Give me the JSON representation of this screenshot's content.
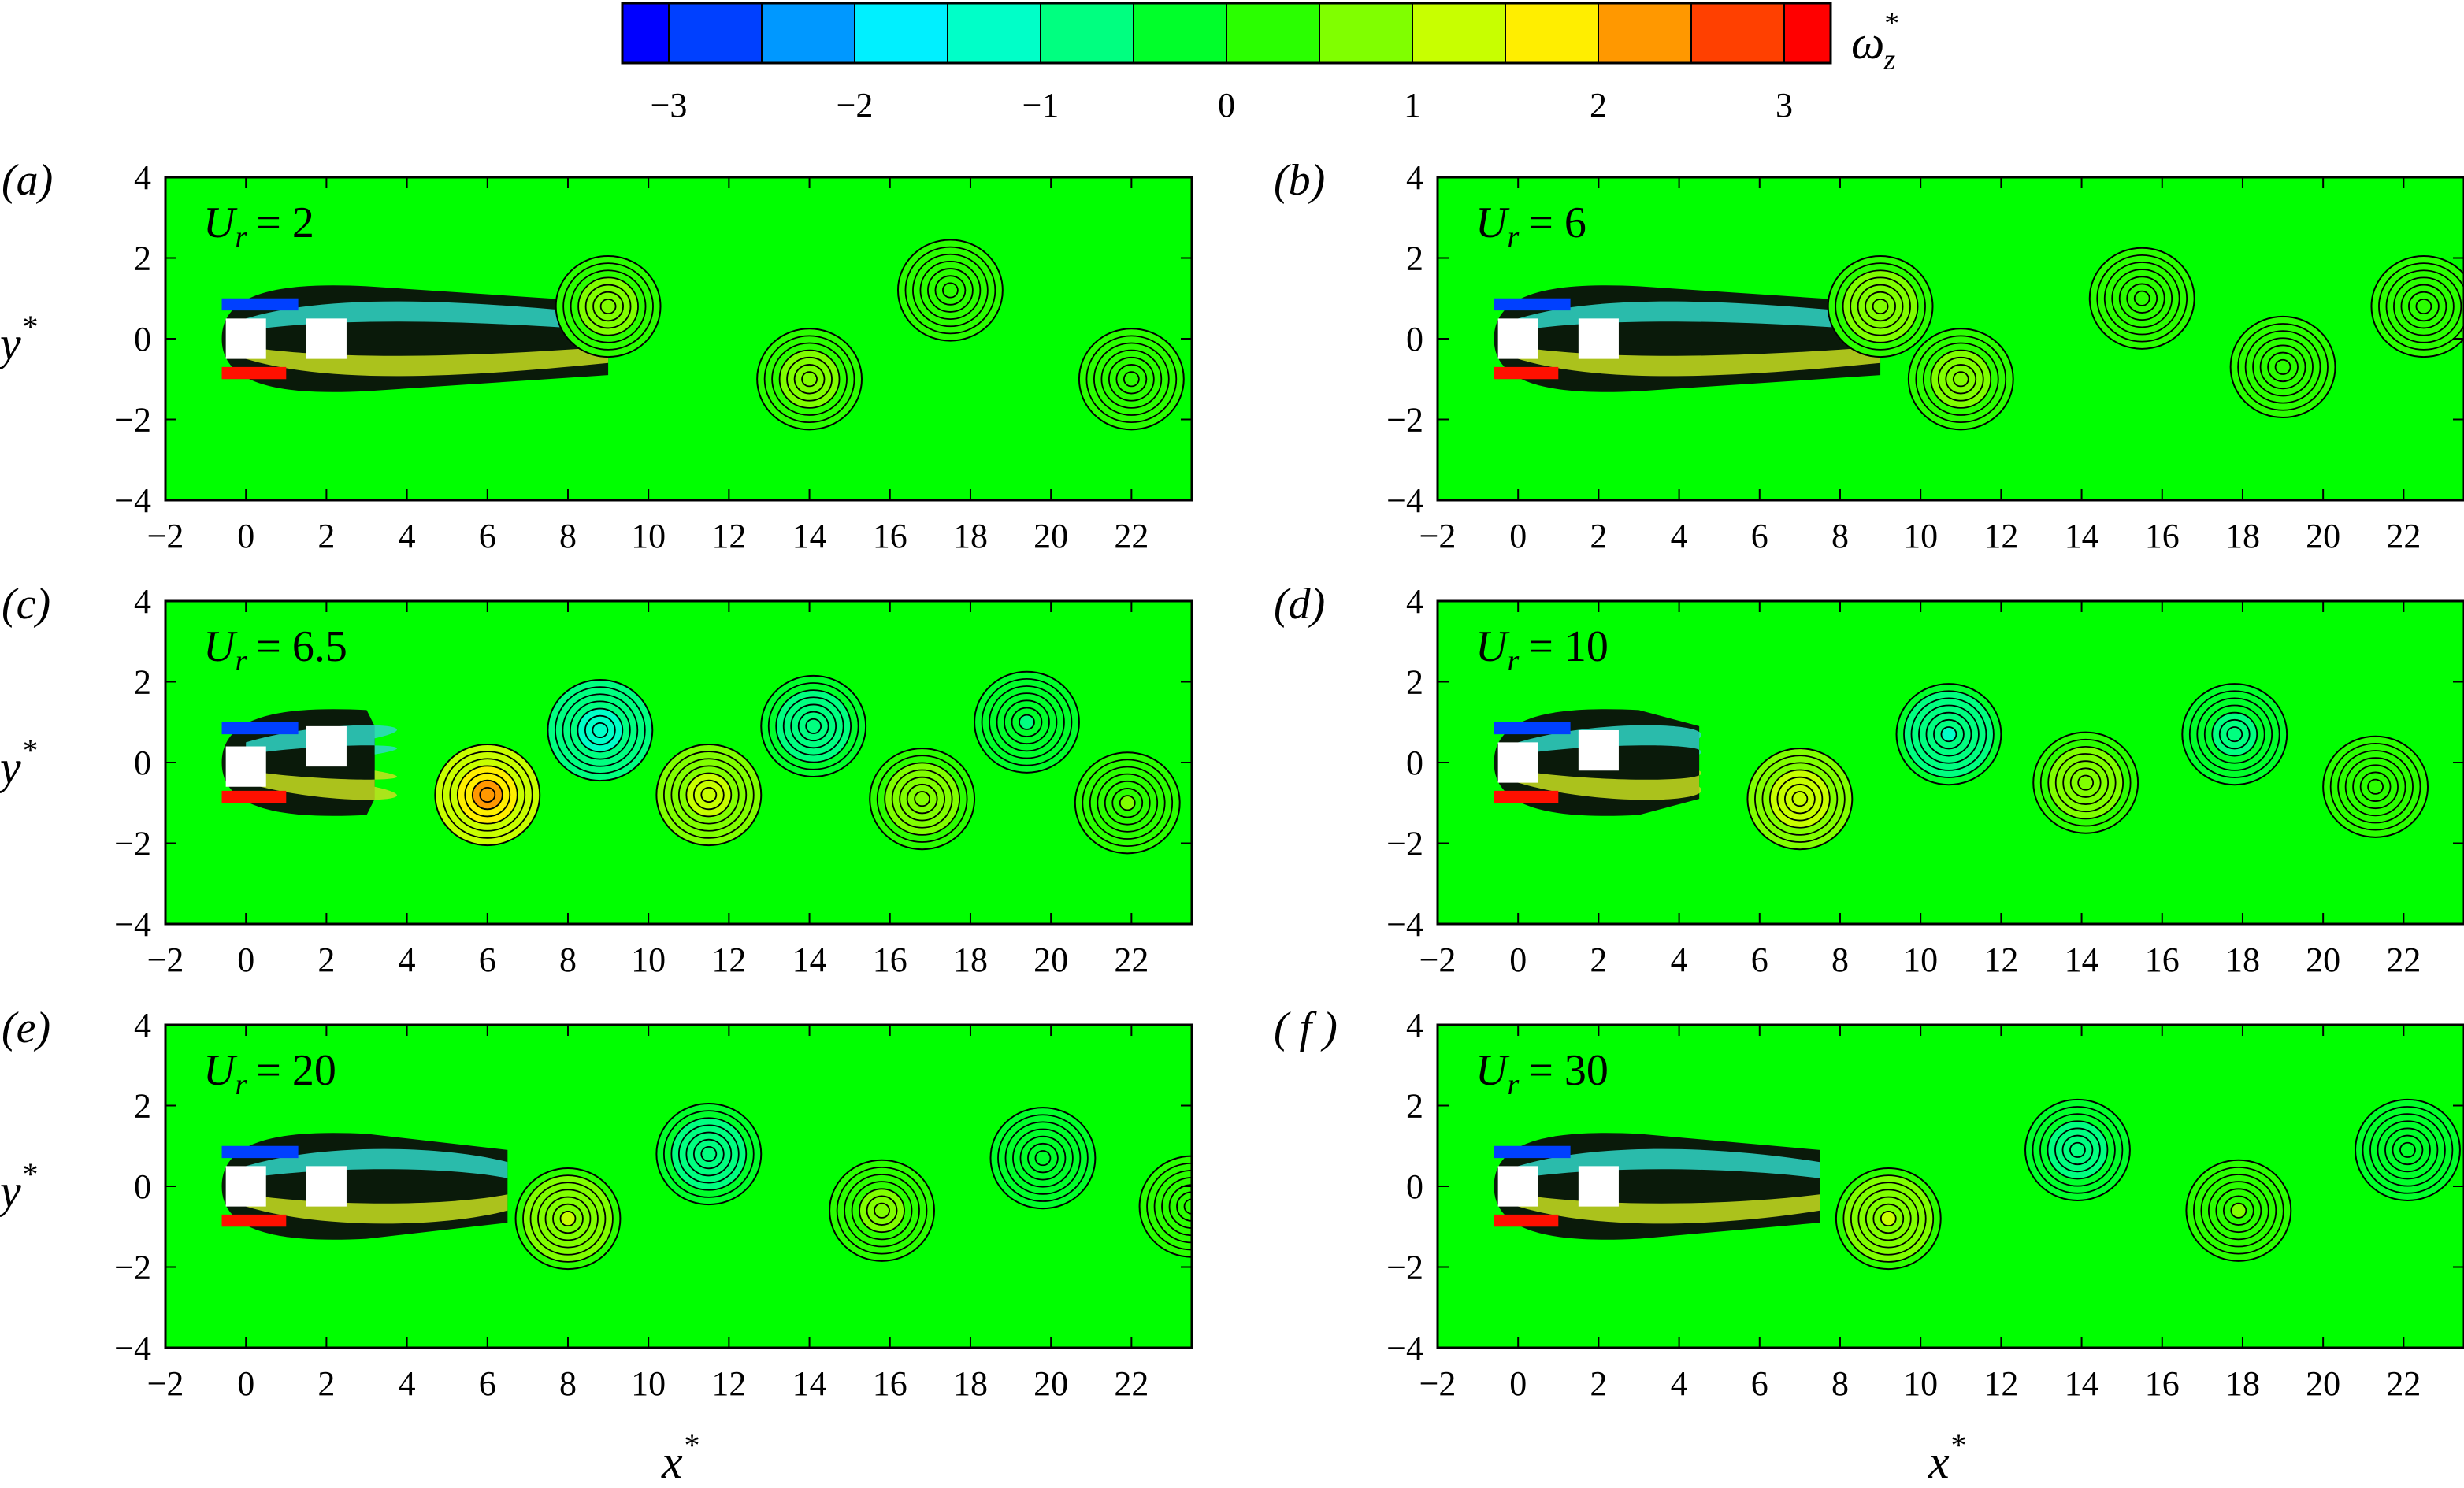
{
  "colorbar": {
    "label": "ω",
    "label_sub": "z",
    "label_sup": "*",
    "ticks": [
      "−3",
      "−2",
      "−1",
      "0",
      "1",
      "2",
      "3"
    ],
    "tick_values": [
      -3,
      -2,
      -1,
      0,
      1,
      2,
      3
    ],
    "range": [
      -3.25,
      3.25
    ],
    "levels": 13,
    "colors": [
      "#0000ff",
      "#0040ff",
      "#0098ff",
      "#00f0ff",
      "#00ffc8",
      "#00ff80",
      "#00ff2a",
      "#2aff00",
      "#80ff00",
      "#c8ff00",
      "#ffee00",
      "#ff9800",
      "#ff4000",
      "#ff0000"
    ]
  },
  "axes": {
    "xlabel": "x",
    "xlabel_sup": "*",
    "ylabel": "y",
    "ylabel_sup": "*",
    "xticks": [
      "−2",
      "0",
      "2",
      "4",
      "6",
      "8",
      "10",
      "12",
      "14",
      "16",
      "18",
      "20",
      "22"
    ],
    "yticks": [
      "4",
      "2",
      "0",
      "−2",
      "−4"
    ],
    "xlim": [
      -2,
      23.5
    ],
    "ylim": [
      -4,
      4
    ],
    "background_color": "#00ff00"
  },
  "panels": [
    {
      "tag": "(a)",
      "label": "U",
      "label_sub": "r",
      "label_value": "= 2"
    },
    {
      "tag": "(b)",
      "label": "U",
      "label_sub": "r",
      "label_value": "= 6"
    },
    {
      "tag": "(c)",
      "label": "U",
      "label_sub": "r",
      "label_value": "= 6.5"
    },
    {
      "tag": "(d)",
      "label": "U",
      "label_sub": "r",
      "label_value": "= 10"
    },
    {
      "tag": "(e)",
      "label": "U",
      "label_sub": "r",
      "label_value": "= 20"
    },
    {
      "tag": "( f )",
      "label": "U",
      "label_sub": "r",
      "label_value": "= 30"
    }
  ],
  "chart_data": {
    "type": "heatmap",
    "title": "",
    "xlabel": "x*",
    "ylabel": "y*",
    "colorbar_label": "ωz*",
    "xlim": [
      -2,
      23.5
    ],
    "ylim": [
      -4,
      4
    ],
    "cylinders": [
      {
        "panel": "a",
        "x": [
          0,
          2
        ],
        "y": [
          0,
          0
        ]
      },
      {
        "panel": "b",
        "x": [
          0,
          2
        ],
        "y": [
          0,
          0
        ]
      },
      {
        "panel": "c",
        "x": [
          0,
          2
        ],
        "y": [
          -0.1,
          0.4
        ]
      },
      {
        "panel": "d",
        "x": [
          0,
          2
        ],
        "y": [
          0,
          0.3
        ]
      },
      {
        "panel": "e",
        "x": [
          0,
          2
        ],
        "y": [
          0,
          0
        ]
      },
      {
        "panel": "f",
        "x": [
          0,
          2
        ],
        "y": [
          0,
          0
        ]
      }
    ],
    "vortices": [
      {
        "panel": "a",
        "Ur": 2,
        "centers": [
          {
            "x": 9,
            "y": 0.8,
            "w": 0.8
          },
          {
            "x": 14,
            "y": -1.0,
            "w": 0.8
          },
          {
            "x": 17.5,
            "y": 1.2,
            "w": 0.3
          },
          {
            "x": 22,
            "y": -1.0,
            "w": 0.3
          }
        ]
      },
      {
        "panel": "b",
        "Ur": 6,
        "centers": [
          {
            "x": 9,
            "y": 0.8,
            "w": 0.9
          },
          {
            "x": 11,
            "y": -1.0,
            "w": 0.8
          },
          {
            "x": 15.5,
            "y": 1.0,
            "w": 0.5
          },
          {
            "x": 19,
            "y": -0.7,
            "w": 0.4
          },
          {
            "x": 22.5,
            "y": 0.8,
            "w": 0.3
          }
        ]
      },
      {
        "panel": "c",
        "Ur": 6.5,
        "centers": [
          {
            "x": 6,
            "y": -0.8,
            "w": 2.5
          },
          {
            "x": 8.8,
            "y": 0.8,
            "w": -1.5
          },
          {
            "x": 11.5,
            "y": -0.8,
            "w": 1.5
          },
          {
            "x": 14.1,
            "y": 0.9,
            "w": -0.9
          },
          {
            "x": 16.8,
            "y": -0.9,
            "w": 0.9
          },
          {
            "x": 19.4,
            "y": 1.0,
            "w": -0.6
          },
          {
            "x": 21.9,
            "y": -1.0,
            "w": 0.6
          }
        ]
      },
      {
        "panel": "d",
        "Ur": 10,
        "centers": [
          {
            "x": 7,
            "y": -0.9,
            "w": 1.6
          },
          {
            "x": 10.7,
            "y": 0.7,
            "w": -1.2
          },
          {
            "x": 14.1,
            "y": -0.5,
            "w": 0.9
          },
          {
            "x": 17.8,
            "y": 0.7,
            "w": -0.7
          },
          {
            "x": 21.3,
            "y": -0.6,
            "w": 0.5
          }
        ]
      },
      {
        "panel": "e",
        "Ur": 20,
        "centers": [
          {
            "x": 8,
            "y": -0.8,
            "w": 1.2
          },
          {
            "x": 11.5,
            "y": 0.8,
            "w": -0.9
          },
          {
            "x": 15.8,
            "y": -0.6,
            "w": 0.7
          },
          {
            "x": 19.8,
            "y": 0.7,
            "w": -0.5
          },
          {
            "x": 23.5,
            "y": -0.5,
            "w": 0.4
          }
        ]
      },
      {
        "panel": "f",
        "Ur": 30,
        "centers": [
          {
            "x": 9.2,
            "y": -0.8,
            "w": 1.1
          },
          {
            "x": 13.9,
            "y": 0.9,
            "w": -0.8
          },
          {
            "x": 17.9,
            "y": -0.6,
            "w": 0.6
          },
          {
            "x": 22.1,
            "y": 0.9,
            "w": -0.5
          }
        ]
      }
    ]
  }
}
